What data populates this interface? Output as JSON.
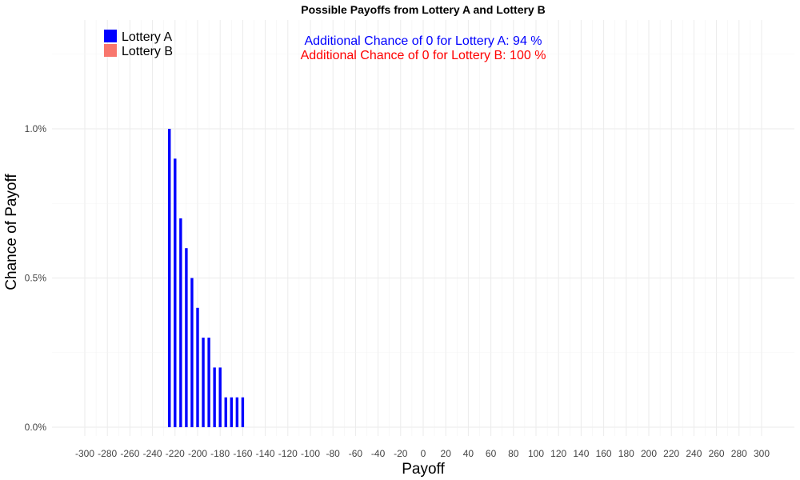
{
  "chart_data": {
    "type": "bar",
    "title": "Possible Payoffs from Lottery A and Lottery B",
    "xlabel": "Payoff",
    "ylabel": "Chance of Payoff",
    "xlim": [
      -310,
      310
    ],
    "ylim": [
      0,
      1.0
    ],
    "x_ticks": [
      -300,
      -280,
      -260,
      -240,
      -220,
      -200,
      -180,
      -160,
      -140,
      -120,
      -100,
      -80,
      -60,
      -40,
      -20,
      0,
      20,
      40,
      60,
      80,
      100,
      120,
      140,
      160,
      180,
      200,
      220,
      240,
      260,
      280,
      300
    ],
    "y_ticks": [
      0,
      0.5,
      1.0
    ],
    "y_tick_labels": [
      "0.0%",
      "0.5%",
      "1.0%"
    ],
    "grid": true,
    "legend_position": "top-left",
    "series": [
      {
        "name": "Lottery A",
        "color": "#0000ff",
        "x": [
          -225,
          -220,
          -215,
          -210,
          -205,
          -200,
          -195,
          -190,
          -185,
          -180,
          -175,
          -170,
          -165,
          -160
        ],
        "values": [
          1.0,
          0.9,
          0.7,
          0.6,
          0.5,
          0.4,
          0.3,
          0.3,
          0.2,
          0.2,
          0.1,
          0.1,
          0.1,
          0.1
        ]
      },
      {
        "name": "Lottery B",
        "color": "#f8766d",
        "x": [],
        "values": []
      }
    ],
    "annotations": [
      {
        "text": "Additional Chance of 0 for Lottery A:  94 %",
        "color": "#0000ff"
      },
      {
        "text": "Additional Chance of 0 for Lottery B:  100 %",
        "color": "#ff0000"
      }
    ]
  }
}
